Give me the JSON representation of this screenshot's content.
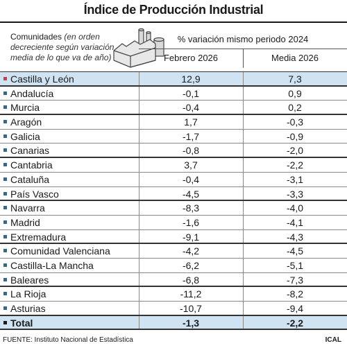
{
  "title": "Índice de Producción Industrial",
  "header": {
    "communities_label": "Comunidades",
    "communities_note": "(en orden decreciente según variación media de lo que va de año)",
    "variation_label": "% variación mismo periodo 2024",
    "col1": "Febrero 2026",
    "col2": "Media 2026"
  },
  "rows": [
    {
      "name": "Castilla y León",
      "feb": "12,9",
      "media": "7,3"
    },
    {
      "name": "Andalucía",
      "feb": "-0,1",
      "media": "0,9"
    },
    {
      "name": "Murcia",
      "feb": "-0,4",
      "media": "0,2"
    },
    {
      "name": "Aragón",
      "feb": "1,7",
      "media": "-0,3"
    },
    {
      "name": "Galicia",
      "feb": "-1,7",
      "media": "-0,9"
    },
    {
      "name": "Canarias",
      "feb": "-0,8",
      "media": "-2,0"
    },
    {
      "name": "Cantabria",
      "feb": "3,7",
      "media": "-2,2"
    },
    {
      "name": "Cataluña",
      "feb": "-0,4",
      "media": "-3,1"
    },
    {
      "name": "País Vasco",
      "feb": "-4,5",
      "media": "-3,3"
    },
    {
      "name": "Navarra",
      "feb": "-8,3",
      "media": "-4,0"
    },
    {
      "name": "Madrid",
      "feb": "-1,6",
      "media": "-4,1"
    },
    {
      "name": "Extremadura",
      "feb": "-9,1",
      "media": "-4,3"
    },
    {
      "name": "Comunidad Valenciana",
      "feb": "-4,2",
      "media": "-4,5"
    },
    {
      "name": "Castilla-La Mancha",
      "feb": "-6,2",
      "media": "-5,1"
    },
    {
      "name": "Baleares",
      "feb": "-6,8",
      "media": "-7,3"
    },
    {
      "name": "La Rioja",
      "feb": "-11,2",
      "media": "-8,2"
    },
    {
      "name": "Asturias",
      "feb": "-10,7",
      "media": "-9,4"
    }
  ],
  "total": {
    "name": "Total",
    "feb": "-1,3",
    "media": "-2,2"
  },
  "footer": {
    "source": "FUENTE: Instituto Nacional de Estadística",
    "brand": "ICAL"
  },
  "colors": {
    "highlight_bg": "#cfe3f2",
    "bullet": "#2f6a8c",
    "bullet_highlight": "#d63a4c"
  },
  "icons": {
    "header_illustration": "factory-icon"
  }
}
